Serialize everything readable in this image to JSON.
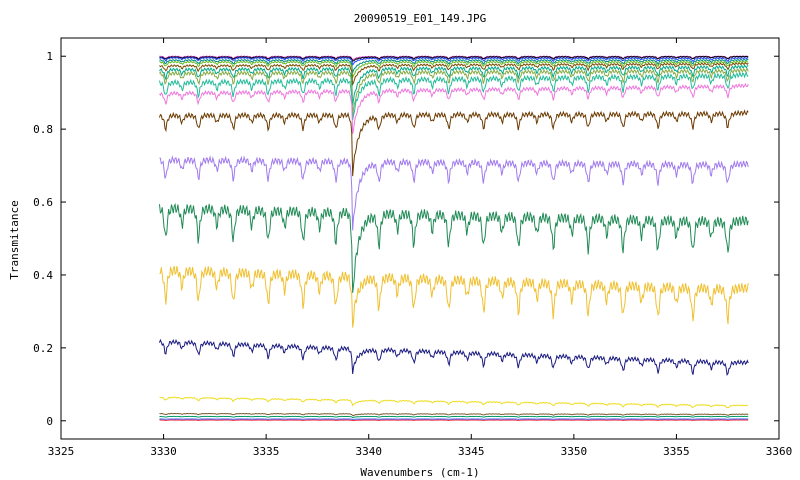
{
  "chart_data": {
    "type": "line",
    "title": "20090519_E01_149.JPG",
    "xlabel": "Wavenumbers (cm-1)",
    "ylabel": "Transmitance",
    "xlim": [
      3325,
      3360
    ],
    "ylim": [
      -0.05,
      1.05
    ],
    "x_ticks": [
      "3325",
      "3330",
      "3335",
      "3340",
      "3345",
      "3350",
      "3355",
      "3360"
    ],
    "y_ticks": [
      "0",
      "0.2",
      "0.4",
      "0.6",
      "0.8",
      "1"
    ],
    "x_range_data": [
      3329.8,
      3358.5
    ],
    "grid": false,
    "legend": "none",
    "line_positions": [
      3330.1,
      3330.9,
      3331.7,
      3332.6,
      3333.4,
      3334.3,
      3335.1,
      3335.9,
      3336.8,
      3337.6,
      3338.4,
      3339.2,
      3340.5,
      3341.4,
      3342.2,
      3343.1,
      3343.9,
      3344.8,
      3345.6,
      3346.5,
      3347.3,
      3348.2,
      3349.0,
      3349.9,
      3350.7,
      3351.6,
      3352.4,
      3353.3,
      3354.1,
      3355.0,
      3355.8,
      3356.7,
      3357.5
    ],
    "strong_line": 3339.2,
    "series": [
      {
        "color": "#cc44cc",
        "start": 1.0,
        "end": 1.0,
        "depth": 0.006,
        "strong": 0.008
      },
      {
        "color": "#000000",
        "start": 0.998,
        "end": 0.999,
        "depth": 0.006,
        "strong": 0.01
      },
      {
        "color": "#2244ff",
        "start": 0.996,
        "end": 0.995,
        "depth": 0.008,
        "strong": 0.015
      },
      {
        "color": "#008888",
        "start": 0.99,
        "end": 0.99,
        "depth": 0.01,
        "strong": 0.03
      },
      {
        "color": "#66bb22",
        "start": 0.985,
        "end": 0.985,
        "depth": 0.012,
        "strong": 0.04
      },
      {
        "color": "#7a4a00",
        "start": 0.975,
        "end": 0.98,
        "depth": 0.015,
        "strong": 0.05
      },
      {
        "color": "#00aa88",
        "start": 0.965,
        "end": 0.972,
        "depth": 0.025,
        "strong": 0.09
      },
      {
        "color": "#88aa44",
        "start": 0.955,
        "end": 0.962,
        "depth": 0.03,
        "strong": 0.11
      },
      {
        "color": "#22bb99",
        "start": 0.93,
        "end": 0.95,
        "depth": 0.04,
        "strong": 0.1
      },
      {
        "color": "#ee77dd",
        "start": 0.9,
        "end": 0.92,
        "depth": 0.03,
        "strong": 0.11
      },
      {
        "color": "#6b3a00",
        "start": 0.84,
        "end": 0.845,
        "depth": 0.04,
        "strong": 0.15
      },
      {
        "color": "#a07aee",
        "start": 0.72,
        "end": 0.705,
        "depth": 0.055,
        "strong": 0.17
      },
      {
        "color": "#1f8a55",
        "start": 0.59,
        "end": 0.55,
        "depth": 0.09,
        "strong": 0.2
      },
      {
        "color": "#f0c030",
        "start": 0.42,
        "end": 0.365,
        "depth": 0.09,
        "strong": 0.1
      },
      {
        "color": "#1a1a80",
        "start": 0.22,
        "end": 0.16,
        "depth": 0.035,
        "strong": 0.05
      },
      {
        "color": "#eedd22",
        "start": 0.065,
        "end": 0.042,
        "depth": 0.008,
        "strong": 0.012
      },
      {
        "color": "#7a5a30",
        "start": 0.02,
        "end": 0.018,
        "depth": 0.003,
        "strong": 0.004
      },
      {
        "color": "#009966",
        "start": 0.012,
        "end": 0.012,
        "depth": 0.002,
        "strong": 0.002
      },
      {
        "color": "#4466ff",
        "start": 0.005,
        "end": 0.005,
        "depth": 0.001,
        "strong": 0.001
      },
      {
        "color": "#ee3344",
        "start": 0.002,
        "end": 0.002,
        "depth": 0.001,
        "strong": 0.001
      }
    ]
  }
}
